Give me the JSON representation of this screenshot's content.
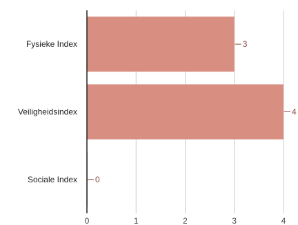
{
  "chart_data": {
    "type": "bar",
    "orientation": "horizontal",
    "categories": [
      "Fysieke Index",
      "Veiligheidsindex",
      "Sociale Index"
    ],
    "values": [
      3,
      4,
      0
    ],
    "value_labels": [
      "3",
      "4",
      "0"
    ],
    "xticks": [
      "0",
      "1",
      "2",
      "3",
      "4"
    ],
    "xlim": [
      0,
      4
    ],
    "title": "",
    "xlabel": "",
    "ylabel": "",
    "grid": true,
    "colors": {
      "bar": "#d88f82",
      "label": "#8a4a40",
      "grid": "#cccccc",
      "axis": "#222222"
    }
  }
}
